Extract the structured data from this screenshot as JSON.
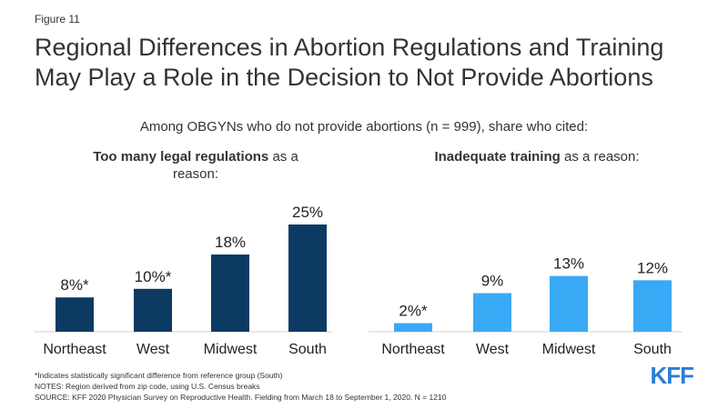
{
  "figure_label": "Figure 11",
  "title": "Regional Differences in Abortion Regulations and Training May Play a Role in the Decision to Not Provide Abortions",
  "subtitle": "Among OBGYNs who do not provide abortions (n = 999), share who cited:",
  "colors": {
    "left": "#0d3a63",
    "right": "#3aa9f5",
    "text": "#333333"
  },
  "chart_data": [
    {
      "type": "bar",
      "title_bold": "Too many legal regulations",
      "title_rest": " as a reason:",
      "categories": [
        "Northeast",
        "West",
        "Midwest",
        "South"
      ],
      "values": [
        8,
        10,
        18,
        25
      ],
      "labels": [
        "8%*",
        "10%*",
        "18%",
        "25%"
      ],
      "ylim": [
        0,
        25
      ],
      "grid": false
    },
    {
      "type": "bar",
      "title_bold": "Inadequate training",
      "title_rest": " as a reason:",
      "categories": [
        "Northeast",
        "West",
        "Midwest",
        "South"
      ],
      "values": [
        2,
        9,
        13,
        12
      ],
      "labels": [
        "2%*",
        "9%",
        "13%",
        "12%"
      ],
      "ylim": [
        0,
        25
      ],
      "grid": false
    }
  ],
  "notes": {
    "line1": "*Indicates statistically significant difference from reference group (South)",
    "line2": "NOTES: Region derived from zip code, using U.S. Census breaks",
    "line3": "SOURCE: KFF 2020 Physician Survey on Reproductive Health. Fielding from March 18 to September 1, 2020. N = 1210"
  },
  "logo": "KFF"
}
